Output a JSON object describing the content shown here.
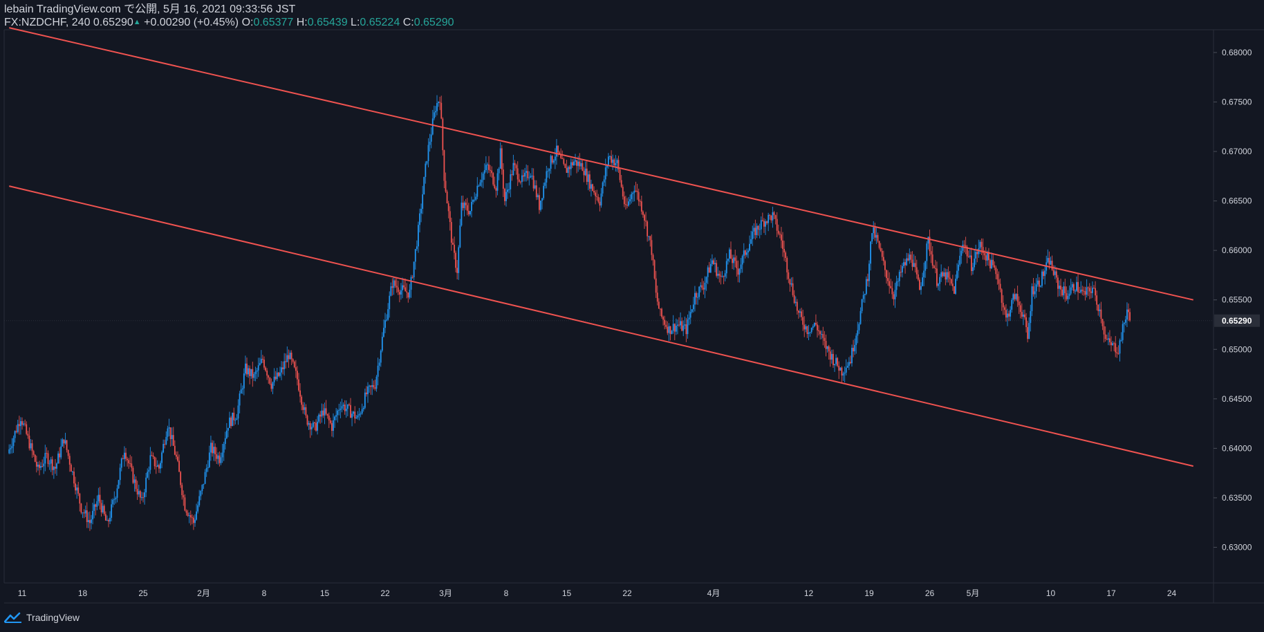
{
  "header": {
    "line1": "lebain TradingView.com で公開, 5月 16, 2021 09:33:56 JST",
    "symbol": "FX:NZDCHF, 240",
    "last": "0.65290",
    "change": "+0.00290 (+0.45%)",
    "o_label": "O:",
    "o_val": "0.65377",
    "h_label": "H:",
    "h_val": "0.65439",
    "l_label": "L:",
    "l_val": "0.65224",
    "c_label": "C:",
    "c_val": "0.65290"
  },
  "footer": {
    "brand": "TradingView",
    "logo_icon": "tradingview-logo-icon"
  },
  "colors": {
    "background": "#131722",
    "up": "#2196f3",
    "down": "#ef5350",
    "channel": "#f05350",
    "text": "#d1d4dc",
    "price_label_bg": "#2a2e39"
  },
  "chart_data": {
    "type": "candlestick",
    "symbol": "FX:NZDCHF",
    "interval": "240",
    "ylim": [
      0.6264,
      0.6823
    ],
    "ytick_labels": [
      "0.68000",
      "0.67500",
      "0.67000",
      "0.66500",
      "0.66000",
      "0.65500",
      "0.65000",
      "0.64500",
      "0.64000",
      "0.63500",
      "0.63000"
    ],
    "ytick_values": [
      0.68,
      0.675,
      0.67,
      0.665,
      0.66,
      0.655,
      0.65,
      0.645,
      0.64,
      0.635,
      0.63
    ],
    "last_price_label": "0.65290",
    "last_price": 0.6529,
    "x_ticks": [
      {
        "label": "11",
        "day": 0
      },
      {
        "label": "18",
        "day": 7
      },
      {
        "label": "25",
        "day": 14
      },
      {
        "label": "2月",
        "day": 21
      },
      {
        "label": "8",
        "day": 28
      },
      {
        "label": "15",
        "day": 35
      },
      {
        "label": "22",
        "day": 42
      },
      {
        "label": "3月",
        "day": 49
      },
      {
        "label": "8",
        "day": 56
      },
      {
        "label": "15",
        "day": 63
      },
      {
        "label": "22",
        "day": 70
      },
      {
        "label": "4月",
        "day": 80
      },
      {
        "label": "12",
        "day": 91
      },
      {
        "label": "19",
        "day": 98
      },
      {
        "label": "26",
        "day": 105
      },
      {
        "label": "5月",
        "day": 110
      },
      {
        "label": "10",
        "day": 119
      },
      {
        "label": "17",
        "day": 126
      },
      {
        "label": "24",
        "day": 133
      }
    ],
    "path_points": [
      [
        -1.5,
        0.6395
      ],
      [
        0,
        0.6432
      ],
      [
        1,
        0.6405
      ],
      [
        2,
        0.6378
      ],
      [
        3,
        0.6392
      ],
      [
        4,
        0.638
      ],
      [
        5,
        0.641
      ],
      [
        6,
        0.6375
      ],
      [
        7,
        0.634
      ],
      [
        8,
        0.6325
      ],
      [
        9,
        0.635
      ],
      [
        10,
        0.6322
      ],
      [
        11,
        0.6355
      ],
      [
        12,
        0.64
      ],
      [
        13,
        0.637
      ],
      [
        14,
        0.6345
      ],
      [
        15,
        0.639
      ],
      [
        16,
        0.638
      ],
      [
        17,
        0.6425
      ],
      [
        18,
        0.639
      ],
      [
        19,
        0.6342
      ],
      [
        20,
        0.6325
      ],
      [
        21,
        0.636
      ],
      [
        22,
        0.64
      ],
      [
        23,
        0.639
      ],
      [
        24,
        0.6425
      ],
      [
        25,
        0.6435
      ],
      [
        26,
        0.648
      ],
      [
        27,
        0.6472
      ],
      [
        28,
        0.649
      ],
      [
        29,
        0.6465
      ],
      [
        30,
        0.6475
      ],
      [
        31,
        0.6495
      ],
      [
        32,
        0.647
      ],
      [
        33,
        0.643
      ],
      [
        34,
        0.642
      ],
      [
        35,
        0.6438
      ],
      [
        36,
        0.6422
      ],
      [
        37,
        0.6445
      ],
      [
        38,
        0.6438
      ],
      [
        39,
        0.643
      ],
      [
        40,
        0.6455
      ],
      [
        41,
        0.6465
      ],
      [
        42,
        0.652
      ],
      [
        43,
        0.6567
      ],
      [
        44,
        0.656
      ],
      [
        45,
        0.6557
      ],
      [
        46,
        0.662
      ],
      [
        47,
        0.6695
      ],
      [
        48,
        0.6745
      ],
      [
        48.5,
        0.6755
      ],
      [
        49,
        0.6675
      ],
      [
        50,
        0.66
      ],
      [
        50.5,
        0.658
      ],
      [
        51,
        0.6645
      ],
      [
        52,
        0.664
      ],
      [
        53,
        0.667
      ],
      [
        54,
        0.6685
      ],
      [
        55,
        0.6665
      ],
      [
        55.5,
        0.6698
      ],
      [
        56,
        0.665
      ],
      [
        57,
        0.6685
      ],
      [
        58,
        0.667
      ],
      [
        59,
        0.668
      ],
      [
        60,
        0.6645
      ],
      [
        61,
        0.6685
      ],
      [
        62,
        0.67
      ],
      [
        63,
        0.668
      ],
      [
        64,
        0.669
      ],
      [
        65,
        0.6685
      ],
      [
        66,
        0.6665
      ],
      [
        67,
        0.665
      ],
      [
        68,
        0.6695
      ],
      [
        69,
        0.6688
      ],
      [
        70,
        0.664
      ],
      [
        71,
        0.6665
      ],
      [
        72,
        0.664
      ],
      [
        73,
        0.66
      ],
      [
        73.5,
        0.6555
      ],
      [
        74,
        0.6535
      ],
      [
        75,
        0.652
      ],
      [
        76,
        0.6525
      ],
      [
        77,
        0.652
      ],
      [
        78,
        0.6555
      ],
      [
        79,
        0.6565
      ],
      [
        80,
        0.659
      ],
      [
        81,
        0.657
      ],
      [
        82,
        0.6595
      ],
      [
        83,
        0.658
      ],
      [
        84,
        0.6602
      ],
      [
        85,
        0.662
      ],
      [
        86,
        0.663
      ],
      [
        87,
        0.6635
      ],
      [
        88,
        0.661
      ],
      [
        89,
        0.657
      ],
      [
        90,
        0.6535
      ],
      [
        91,
        0.652
      ],
      [
        92,
        0.6525
      ],
      [
        93,
        0.6505
      ],
      [
        94,
        0.649
      ],
      [
        95,
        0.6478
      ],
      [
        96,
        0.649
      ],
      [
        97,
        0.653
      ],
      [
        98,
        0.6575
      ],
      [
        98.5,
        0.662
      ],
      [
        99,
        0.6612
      ],
      [
        100,
        0.658
      ],
      [
        101,
        0.6555
      ],
      [
        102,
        0.6582
      ],
      [
        103,
        0.6595
      ],
      [
        104,
        0.656
      ],
      [
        105,
        0.661
      ],
      [
        106,
        0.657
      ],
      [
        107,
        0.6575
      ],
      [
        108,
        0.656
      ],
      [
        109,
        0.661
      ],
      [
        110,
        0.6585
      ],
      [
        111,
        0.6605
      ],
      [
        112,
        0.659
      ],
      [
        113,
        0.6575
      ],
      [
        114,
        0.653
      ],
      [
        115,
        0.6555
      ],
      [
        116,
        0.6535
      ],
      [
        116.5,
        0.651
      ],
      [
        117,
        0.656
      ],
      [
        118,
        0.657
      ],
      [
        119,
        0.659
      ],
      [
        120,
        0.6565
      ],
      [
        121,
        0.6555
      ],
      [
        122,
        0.6565
      ],
      [
        123,
        0.6555
      ],
      [
        124,
        0.6562
      ],
      [
        125,
        0.6535
      ],
      [
        125.5,
        0.651
      ],
      [
        126,
        0.6505
      ],
      [
        127,
        0.65
      ],
      [
        128,
        0.654
      ],
      [
        128.3,
        0.6529
      ]
    ],
    "channel": {
      "upper": [
        [
          -1.5,
          0.6825
        ],
        [
          135.5,
          0.655
        ]
      ],
      "lower": [
        [
          -1.5,
          0.6665
        ],
        [
          135.5,
          0.6382
        ]
      ]
    }
  }
}
